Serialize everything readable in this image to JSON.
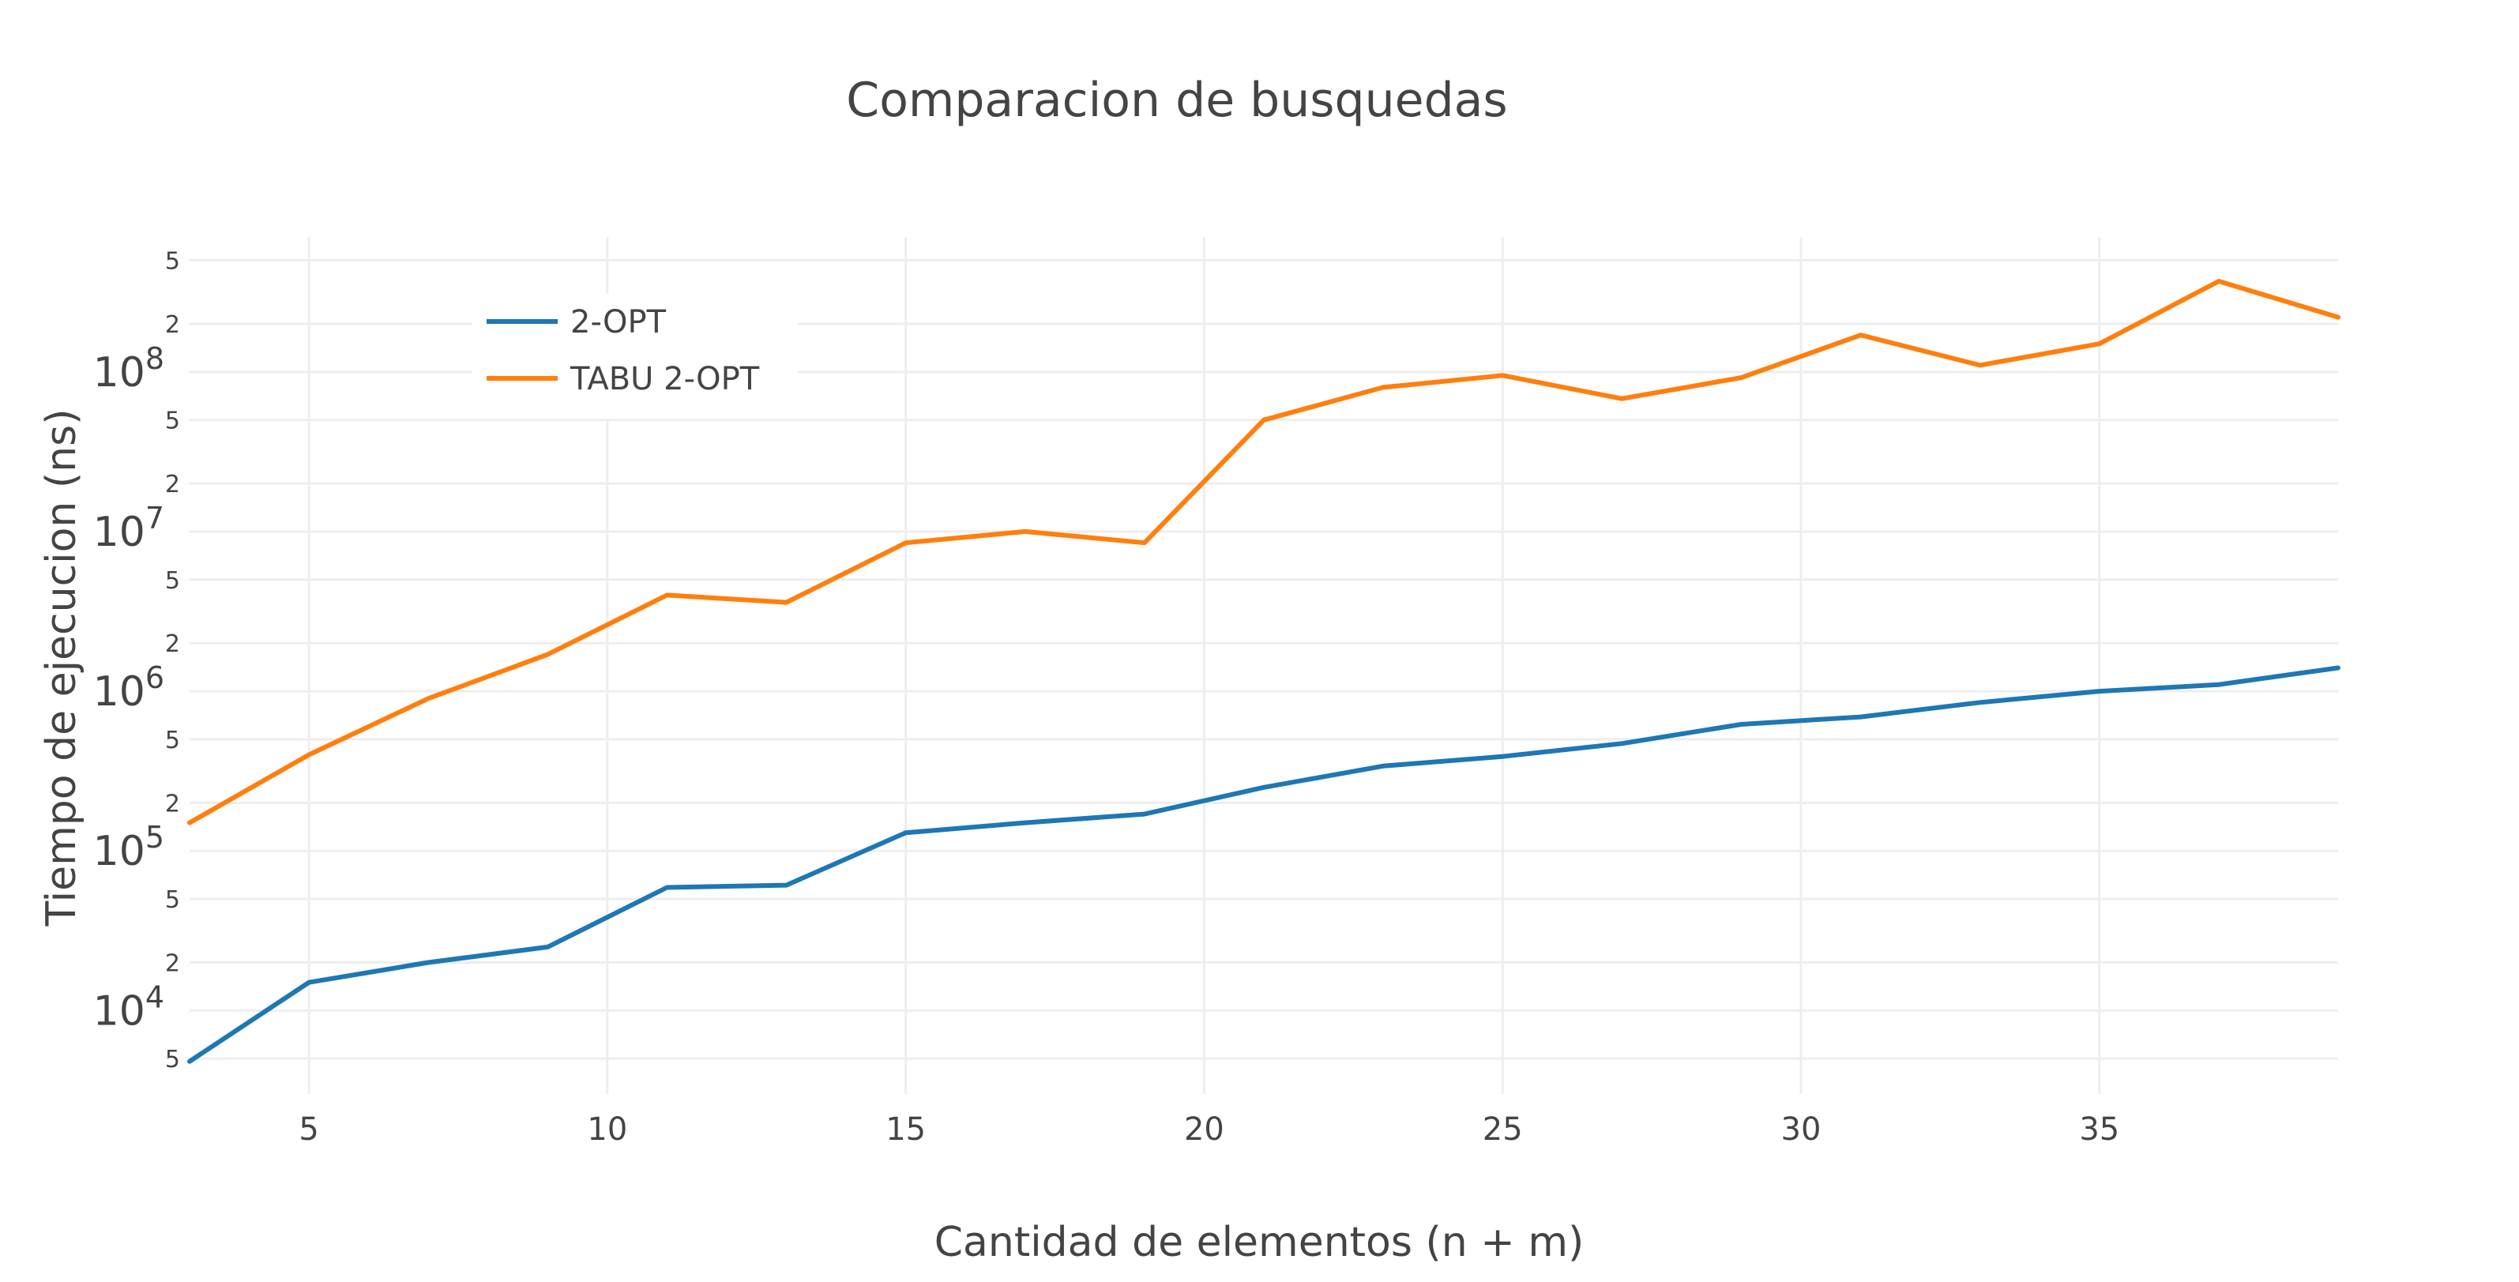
{
  "chart_data": {
    "type": "line",
    "title": "Comparacion de busquedas",
    "xlabel": "Cantidad de elementos (n + m)",
    "ylabel": "Tiempo de ejecucion (ns)",
    "xlim": [
      3,
      39
    ],
    "ylim": [
      3000,
      700000000
    ],
    "yscale": "log",
    "x_ticks": [
      5,
      10,
      15,
      20,
      25,
      30,
      35
    ],
    "y_major_ticks": [
      {
        "value": 10000,
        "base": "10",
        "exp": "4"
      },
      {
        "value": 100000,
        "base": "10",
        "exp": "5"
      },
      {
        "value": 1000000,
        "base": "10",
        "exp": "6"
      },
      {
        "value": 10000000,
        "base": "10",
        "exp": "7"
      },
      {
        "value": 100000000,
        "base": "10",
        "exp": "8"
      }
    ],
    "y_minor_ticks": [
      {
        "value": 5000,
        "label": "5"
      },
      {
        "value": 20000,
        "label": "2"
      },
      {
        "value": 50000,
        "label": "5"
      },
      {
        "value": 200000,
        "label": "2"
      },
      {
        "value": 500000,
        "label": "5"
      },
      {
        "value": 2000000,
        "label": "2"
      },
      {
        "value": 5000000,
        "label": "5"
      },
      {
        "value": 20000000,
        "label": "2"
      },
      {
        "value": 50000000,
        "label": "5"
      },
      {
        "value": 200000000,
        "label": "2"
      },
      {
        "value": 500000000,
        "label": "5"
      }
    ],
    "grid": true,
    "legend_position": "top-left",
    "x": [
      3,
      5,
      7,
      9,
      11,
      13,
      15,
      17,
      19,
      21,
      23,
      25,
      27,
      29,
      31,
      33,
      35,
      37,
      39
    ],
    "series": [
      {
        "name": "2-OPT",
        "color": "#1f77b4",
        "values": [
          4800,
          15000,
          20000,
          25000,
          59000,
          61000,
          130000,
          150000,
          170000,
          250000,
          340000,
          390000,
          470000,
          620000,
          690000,
          850000,
          1000000,
          1100000,
          1400000
        ]
      },
      {
        "name": "TABU 2-OPT",
        "color": "#ff7f0e",
        "values": [
          150000,
          400000,
          900000,
          1700000,
          4000000,
          3600000,
          8500000,
          10000000,
          8500000,
          50000000,
          80000000,
          95000000,
          68000000,
          92000000,
          170000000,
          110000000,
          150000000,
          370000000,
          220000000
        ]
      }
    ]
  }
}
